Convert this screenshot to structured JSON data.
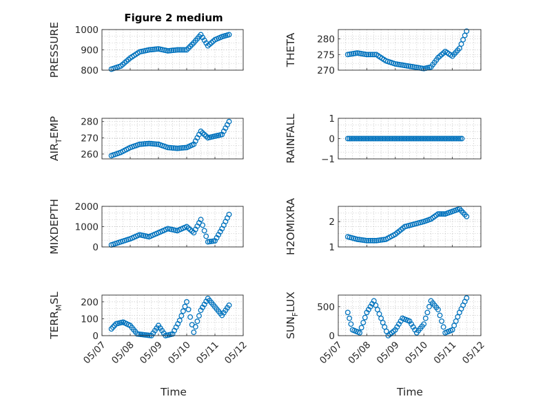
{
  "figure": {
    "title": "Figure 2 medium",
    "xlabel": "Time",
    "accent_color": "#0072BD",
    "x_tick_labels": [
      "05/07",
      "05/08",
      "05/09",
      "05/10",
      "05/11",
      "05/12"
    ]
  },
  "chart_data": [
    {
      "type": "scatter",
      "ylabel": "PRESSURE",
      "ylim": [
        800,
        1000
      ],
      "yticks": [
        800,
        900,
        1000
      ],
      "xlim": [
        "05/07",
        "05/12"
      ],
      "grid": true,
      "x": [
        "05/07 08:00",
        "05/07 16:00",
        "05/08 00:00",
        "05/08 08:00",
        "05/08 16:00",
        "05/09 00:00",
        "05/09 08:00",
        "05/09 16:00",
        "05/10 00:00",
        "05/10 06:00",
        "05/10 12:00",
        "05/10 18:00",
        "05/11 00:00",
        "05/11 06:00",
        "05/11 12:00"
      ],
      "y": [
        805,
        820,
        860,
        890,
        900,
        905,
        895,
        900,
        900,
        935,
        975,
        920,
        950,
        965,
        975
      ]
    },
    {
      "type": "scatter",
      "ylabel": "THETA",
      "ylim": [
        270,
        283
      ],
      "yticks": [
        270,
        275,
        280
      ],
      "xlim": [
        "05/07",
        "05/12"
      ],
      "grid": true,
      "x": [
        "05/07 08:00",
        "05/07 16:00",
        "05/08 00:00",
        "05/08 08:00",
        "05/08 16:00",
        "05/09 00:00",
        "05/09 08:00",
        "05/09 16:00",
        "05/10 00:00",
        "05/10 06:00",
        "05/10 12:00",
        "05/10 18:00",
        "05/11 00:00",
        "05/11 06:00",
        "05/11 12:00"
      ],
      "y": [
        275,
        275.5,
        275,
        275,
        273,
        272,
        271.5,
        271,
        270.5,
        271,
        274,
        276,
        274.5,
        277,
        282.5
      ]
    },
    {
      "type": "scatter",
      "ylabel": "AIR_TEMP",
      "ylim": [
        257,
        282
      ],
      "yticks": [
        260,
        270,
        280
      ],
      "xlim": [
        "05/07",
        "05/12"
      ],
      "grid": true,
      "x": [
        "05/07 08:00",
        "05/07 16:00",
        "05/08 00:00",
        "05/08 08:00",
        "05/08 16:00",
        "05/09 00:00",
        "05/09 08:00",
        "05/09 16:00",
        "05/10 00:00",
        "05/10 06:00",
        "05/10 12:00",
        "05/10 18:00",
        "05/11 00:00",
        "05/11 06:00",
        "05/11 12:00"
      ],
      "y": [
        259,
        261,
        264,
        266,
        266.5,
        266,
        264,
        263.5,
        264,
        266,
        274,
        270,
        271,
        272,
        280
      ]
    },
    {
      "type": "scatter",
      "ylabel": "RAINFALL",
      "ylim": [
        -1,
        1
      ],
      "yticks": [
        -1,
        0,
        1
      ],
      "xlim": [
        "05/07",
        "05/12"
      ],
      "grid": true,
      "x": [
        "05/07 08:00",
        "05/08 00:00",
        "05/08 16:00",
        "05/09 08:00",
        "05/10 00:00",
        "05/10 16:00",
        "05/11 08:00"
      ],
      "y": [
        0,
        0,
        0,
        0,
        0,
        0,
        0
      ]
    },
    {
      "type": "scatter",
      "ylabel": "MIXDEPTH",
      "ylim": [
        0,
        2000
      ],
      "yticks": [
        0,
        1000,
        2000
      ],
      "xlim": [
        "05/07",
        "05/12"
      ],
      "grid": true,
      "x": [
        "05/07 08:00",
        "05/07 16:00",
        "05/08 00:00",
        "05/08 08:00",
        "05/08 16:00",
        "05/09 00:00",
        "05/09 08:00",
        "05/09 16:00",
        "05/10 00:00",
        "05/10 06:00",
        "05/10 12:00",
        "05/10 18:00",
        "05/11 00:00",
        "05/11 06:00",
        "05/11 12:00"
      ],
      "y": [
        100,
        250,
        400,
        600,
        500,
        700,
        900,
        800,
        1000,
        700,
        1350,
        250,
        300,
        900,
        1600
      ]
    },
    {
      "type": "scatter",
      "ylabel": "H2OMIXRA",
      "ylim": [
        1,
        2.6
      ],
      "yticks": [
        1,
        2
      ],
      "xlim": [
        "05/07",
        "05/12"
      ],
      "grid": true,
      "x": [
        "05/07 08:00",
        "05/07 16:00",
        "05/08 00:00",
        "05/08 08:00",
        "05/08 16:00",
        "05/09 00:00",
        "05/09 08:00",
        "05/09 16:00",
        "05/10 00:00",
        "05/10 06:00",
        "05/10 12:00",
        "05/10 18:00",
        "05/11 00:00",
        "05/11 06:00",
        "05/11 12:00"
      ],
      "y": [
        1.4,
        1.3,
        1.25,
        1.25,
        1.3,
        1.5,
        1.8,
        1.9,
        2.0,
        2.1,
        2.3,
        2.3,
        2.4,
        2.5,
        2.2
      ]
    },
    {
      "type": "scatter",
      "ylabel": "TERR_MSL",
      "ylim": [
        0,
        240
      ],
      "yticks": [
        0,
        100,
        200
      ],
      "xlim": [
        "05/07",
        "05/12"
      ],
      "grid": true,
      "x": [
        "05/07 08:00",
        "05/07 12:00",
        "05/07 18:00",
        "05/08 00:00",
        "05/08 06:00",
        "05/08 12:00",
        "05/08 18:00",
        "05/09 00:00",
        "05/09 06:00",
        "05/09 12:00",
        "05/09 18:00",
        "05/10 00:00",
        "05/10 06:00",
        "05/10 12:00",
        "05/10 18:00",
        "05/11 00:00",
        "05/11 06:00",
        "05/11 12:00"
      ],
      "y": [
        40,
        70,
        80,
        60,
        10,
        5,
        0,
        60,
        0,
        10,
        90,
        200,
        20,
        150,
        220,
        170,
        120,
        180
      ]
    },
    {
      "type": "scatter",
      "ylabel": "SUN_FLUX",
      "ylim": [
        0,
        700
      ],
      "yticks": [
        0,
        500
      ],
      "xlim": [
        "05/07",
        "05/12"
      ],
      "grid": true,
      "x": [
        "05/07 08:00",
        "05/07 12:00",
        "05/07 18:00",
        "05/08 00:00",
        "05/08 06:00",
        "05/08 12:00",
        "05/08 18:00",
        "05/09 00:00",
        "05/09 06:00",
        "05/09 12:00",
        "05/09 18:00",
        "05/10 00:00",
        "05/10 06:00",
        "05/10 12:00",
        "05/10 18:00",
        "05/11 00:00",
        "05/11 06:00",
        "05/11 12:00"
      ],
      "y": [
        400,
        100,
        50,
        400,
        600,
        300,
        0,
        100,
        300,
        250,
        50,
        200,
        600,
        450,
        50,
        100,
        400,
        650
      ]
    }
  ]
}
